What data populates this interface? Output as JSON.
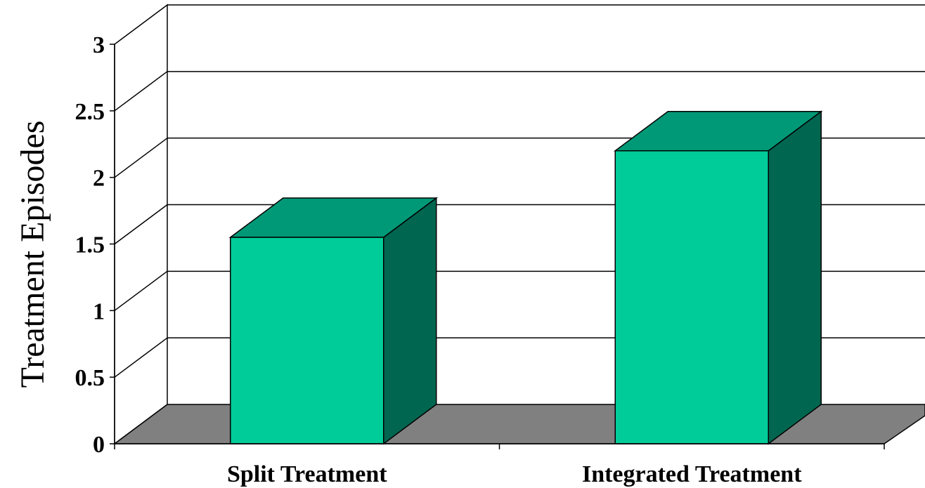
{
  "chart_data": {
    "type": "bar",
    "style": "3d",
    "categories": [
      "Split Treatment",
      "Integrated Treatment"
    ],
    "values": [
      1.55,
      2.2
    ],
    "title": "",
    "xlabel": "",
    "ylabel": "Treatment Episodes",
    "ylim": [
      0,
      3
    ],
    "yticks": [
      "0",
      "0.5",
      "1",
      "1.5",
      "2",
      "2.5",
      "3"
    ],
    "grid": true,
    "legend": "none",
    "colors": {
      "bar_front": "#00CC99",
      "bar_top": "#009977",
      "bar_side": "#006650",
      "floor": "#808080",
      "grid": "#000000"
    }
  }
}
